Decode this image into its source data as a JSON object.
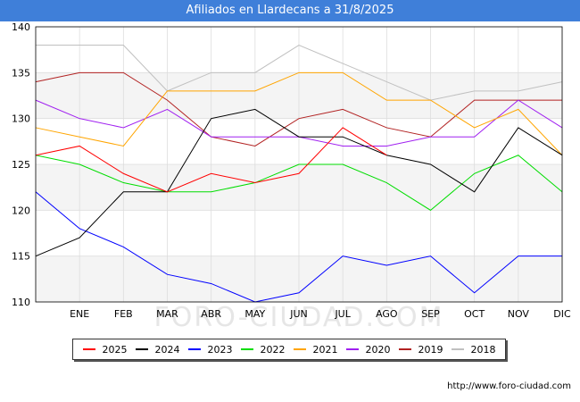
{
  "header": {
    "title": "Afiliados en Llardecans a 31/8/2025"
  },
  "footer": {
    "source": "http://www.foro-ciudad.com",
    "watermark": "FORO-CIUDAD.COM"
  },
  "chart_data": {
    "type": "line",
    "title": "Afiliados en Llardecans a 31/8/2025",
    "xlabel": "",
    "ylabel": "",
    "ylim": [
      110,
      140
    ],
    "yticks": [
      110,
      115,
      120,
      125,
      130,
      135,
      140
    ],
    "categories": [
      "",
      "ENE",
      "FEB",
      "MAR",
      "ABR",
      "MAY",
      "JUN",
      "JUL",
      "AGO",
      "SEP",
      "OCT",
      "NOV",
      "DIC"
    ],
    "legend_position": "bottom",
    "series": [
      {
        "name": "2025",
        "color": "#ff0000",
        "values": [
          126,
          127,
          124,
          122,
          124,
          123,
          124,
          129,
          126,
          null,
          null,
          null,
          null
        ]
      },
      {
        "name": "2024",
        "color": "#000000",
        "values": [
          115,
          117,
          122,
          122,
          130,
          131,
          128,
          128,
          126,
          125,
          122,
          129,
          126
        ]
      },
      {
        "name": "2023",
        "color": "#0000ff",
        "values": [
          122,
          118,
          116,
          113,
          112,
          110,
          111,
          115,
          114,
          115,
          111,
          115,
          115
        ]
      },
      {
        "name": "2022",
        "color": "#00dd00",
        "values": [
          126,
          125,
          123,
          122,
          122,
          123,
          125,
          125,
          123,
          120,
          124,
          126,
          122
        ]
      },
      {
        "name": "2021",
        "color": "#ffa500",
        "values": [
          129,
          128,
          127,
          133,
          133,
          133,
          135,
          135,
          132,
          132,
          129,
          131,
          126
        ]
      },
      {
        "name": "2020",
        "color": "#a020f0",
        "values": [
          132,
          130,
          129,
          131,
          128,
          128,
          128,
          127,
          127,
          128,
          128,
          132,
          129
        ]
      },
      {
        "name": "2019",
        "color": "#b22222",
        "values": [
          134,
          135,
          135,
          132,
          128,
          127,
          130,
          131,
          129,
          128,
          132,
          132,
          132
        ]
      },
      {
        "name": "2018",
        "color": "#c0c0c0",
        "values": [
          138,
          138,
          138,
          133,
          135,
          135,
          138,
          136,
          134,
          132,
          133,
          133,
          134
        ]
      }
    ]
  }
}
